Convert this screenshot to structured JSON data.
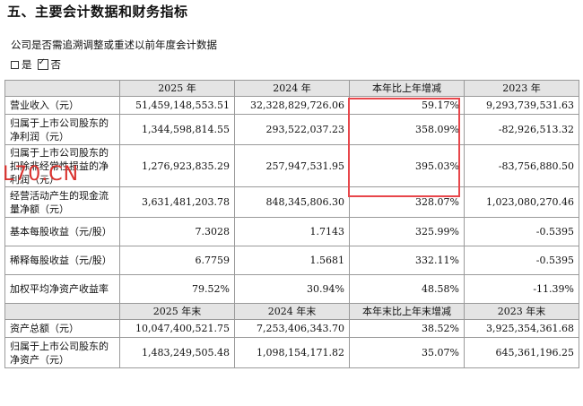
{
  "section_title": "五、主要会计数据和财务指标",
  "subline": "公司是否需追溯调整或重述以前年度会计数据",
  "choice": {
    "yes": "是",
    "no": "否"
  },
  "watermark": "L70.CN",
  "table1": {
    "headers": [
      "",
      "2025 年",
      "2024 年",
      "本年比上年增减",
      "2023 年"
    ],
    "rows": [
      [
        "营业收入（元）",
        "51,459,148,553.51",
        "32,328,829,726.06",
        "59.17%",
        "9,293,739,531.63"
      ],
      [
        "归属于上市公司股东的净利润（元）",
        "1,344,598,814.55",
        "293,522,037.23",
        "358.09%",
        "-82,926,513.32"
      ],
      [
        "归属于上市公司股东的扣除非经常性损益的净利润（元）",
        "1,276,923,835.29",
        "257,947,531.95",
        "395.03%",
        "-83,756,880.50"
      ],
      [
        "经营活动产生的现金流量净额（元）",
        "3,631,481,203.78",
        "848,345,806.30",
        "328.07%",
        "1,023,080,270.46"
      ],
      [
        "基本每股收益（元/股）",
        "7.3028",
        "1.7143",
        "325.99%",
        "-0.5395"
      ],
      [
        "稀释每股收益（元/股）",
        "6.7759",
        "1.5681",
        "332.11%",
        "-0.5395"
      ],
      [
        "加权平均净资产收益率",
        "79.52%",
        "30.94%",
        "48.58%",
        "-11.39%"
      ]
    ]
  },
  "table2": {
    "headers": [
      "",
      "2025 年末",
      "2024 年末",
      "本年末比上年末增减",
      "2023 年末"
    ],
    "rows": [
      [
        "资产总额（元）",
        "10,047,400,521.75",
        "7,253,406,343.70",
        "38.52%",
        "3,925,354,361.68"
      ],
      [
        "归属于上市公司股东的净资产（元）",
        "1,483,249,505.48",
        "1,098,154,171.82",
        "35.07%",
        "645,361,196.25"
      ]
    ]
  }
}
